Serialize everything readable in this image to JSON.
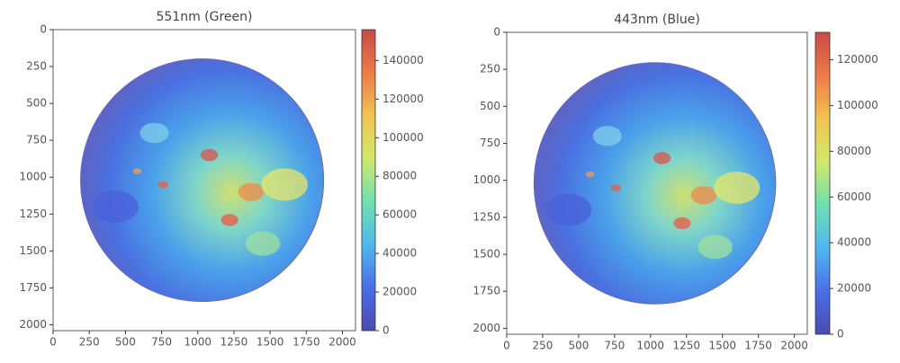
{
  "chart_data": [
    {
      "type": "image",
      "title": "551nm (Green)",
      "xlim": [
        0,
        2090
      ],
      "ylim": [
        2040,
        0
      ],
      "xticks": [
        0,
        250,
        500,
        750,
        1000,
        1250,
        1500,
        1750,
        2000
      ],
      "yticks": [
        0,
        250,
        500,
        750,
        1000,
        1250,
        1500,
        1750,
        2000
      ],
      "clim": [
        0,
        156000
      ],
      "cticks": [
        0,
        20000,
        40000,
        60000,
        80000,
        100000,
        120000,
        140000
      ],
      "colormap": [
        "#4b4bb0",
        "#4a6ee8",
        "#4fb8ef",
        "#6fe0b0",
        "#cfe96a",
        "#f2c452",
        "#ee7a48",
        "#c94a45"
      ]
    },
    {
      "type": "image",
      "title": "443nm (Blue)",
      "xlim": [
        0,
        2090
      ],
      "ylim": [
        2040,
        0
      ],
      "xticks": [
        0,
        250,
        500,
        750,
        1000,
        1250,
        1500,
        1750,
        2000
      ],
      "yticks": [
        0,
        250,
        500,
        750,
        1000,
        1250,
        1500,
        1750,
        2000
      ],
      "clim": [
        0,
        132000
      ],
      "cticks": [
        0,
        20000,
        40000,
        60000,
        80000,
        100000,
        120000
      ],
      "colormap": [
        "#4b4bb0",
        "#4a6ee8",
        "#4fb8ef",
        "#6fe0b0",
        "#cfe96a",
        "#f2c452",
        "#ee7a48",
        "#c94a45"
      ]
    }
  ]
}
